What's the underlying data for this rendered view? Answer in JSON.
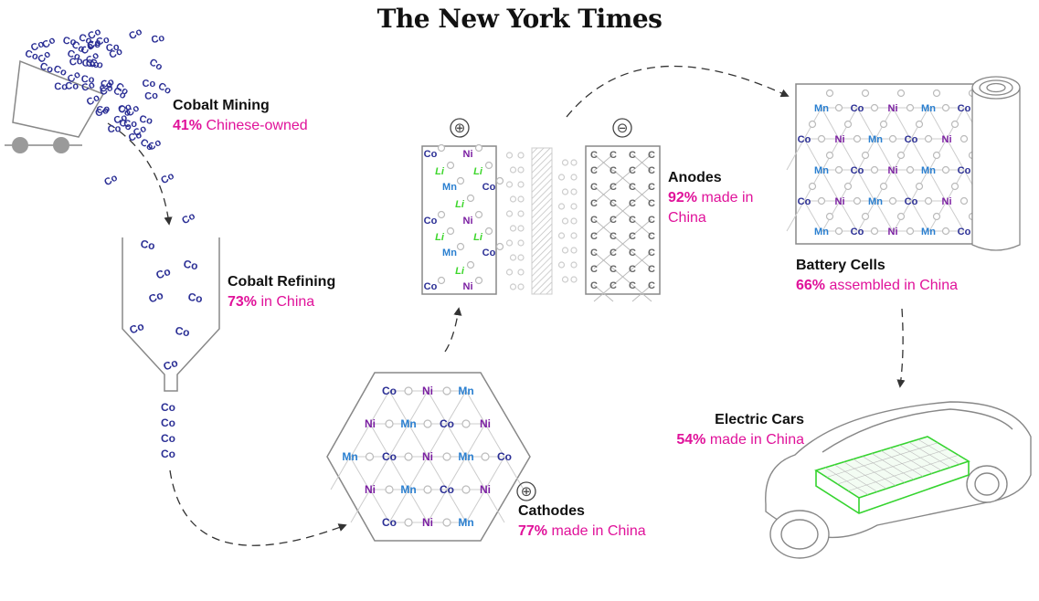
{
  "masthead": "The New York Times",
  "element_symbols": {
    "cobalt": "Co",
    "nickel": "Ni",
    "manganese": "Mn",
    "lithium": "Li",
    "carbon": "C"
  },
  "terminals": {
    "positive": "⊕",
    "negative": "⊖"
  },
  "colors": {
    "cobalt": "#2b2f95",
    "nickel": "#7b1fa2",
    "manganese": "#2a7fd0",
    "lithium": "#3dd62c",
    "carbon": "#666666",
    "highlight": "#e0129a",
    "battery_outline": "#35d42f"
  },
  "stages": [
    {
      "id": "cobalt-mining",
      "title": "Cobalt Mining",
      "percent": "41%",
      "rest": " Chinese-owned"
    },
    {
      "id": "cobalt-refining",
      "title": "Cobalt Refining",
      "percent": "73%",
      "rest": " in China"
    },
    {
      "id": "cathodes",
      "title": "Cathodes",
      "percent": "77%",
      "rest": " made in China"
    },
    {
      "id": "anodes",
      "title": "Anodes",
      "percent": "92%",
      "rest": " made in China"
    },
    {
      "id": "battery-cells",
      "title": "Battery Cells",
      "percent": "66%",
      "rest": " assembled in China"
    },
    {
      "id": "electric-cars",
      "title": "Electric Cars",
      "percent": "54%",
      "rest": " made in China"
    }
  ]
}
